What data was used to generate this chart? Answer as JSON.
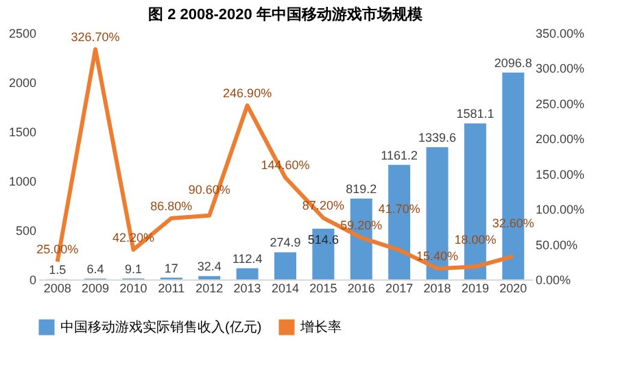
{
  "chart_data": {
    "type": "bar",
    "title": "图 2 2008-2020 年中国移动游戏市场规模",
    "categories": [
      "2008",
      "2009",
      "2010",
      "2011",
      "2012",
      "2013",
      "2014",
      "2015",
      "2016",
      "2017",
      "2018",
      "2019",
      "2020"
    ],
    "series": [
      {
        "name": "中国移动游戏实际销售收入(亿元)",
        "type": "bar",
        "color": "#5b9bd5",
        "values": [
          1.5,
          6.4,
          9.1,
          17,
          32.4,
          112.4,
          274.9,
          514.6,
          819.2,
          1161.2,
          1339.6,
          1581.1,
          2096.8
        ]
      },
      {
        "name": "增长率",
        "type": "line",
        "axis": "y2",
        "color": "#ed7d31",
        "values": [
          25.0,
          326.7,
          42.2,
          86.8,
          90.6,
          246.9,
          144.6,
          87.2,
          59.2,
          41.7,
          15.4,
          18.0,
          32.6
        ],
        "value_labels": [
          "25.00%",
          "326.70%",
          "42.20%",
          "86.80%",
          "90.60%",
          "246.90%",
          "144.60%",
          "87.20%",
          "59.20%",
          "41.70%",
          "15.40%",
          "18.00%",
          "32.60%"
        ]
      }
    ],
    "data_labels": true,
    "ylim": [
      0,
      2500
    ],
    "yticks": [
      0,
      500,
      1000,
      1500,
      2000,
      2500
    ],
    "y2lim": [
      0,
      350
    ],
    "y2ticks": [
      {
        "value": 0,
        "label": "0.00%"
      },
      {
        "value": 50,
        "label": "50.00%"
      },
      {
        "value": 100,
        "label": "100.00%"
      },
      {
        "value": 150,
        "label": "150.00%"
      },
      {
        "value": 200,
        "label": "200.00%"
      },
      {
        "value": 250,
        "label": "250.00%"
      },
      {
        "value": 300,
        "label": "300.00%"
      },
      {
        "value": 350,
        "label": "350.00%"
      }
    ],
    "grid": false,
    "legend": "bottom"
  }
}
